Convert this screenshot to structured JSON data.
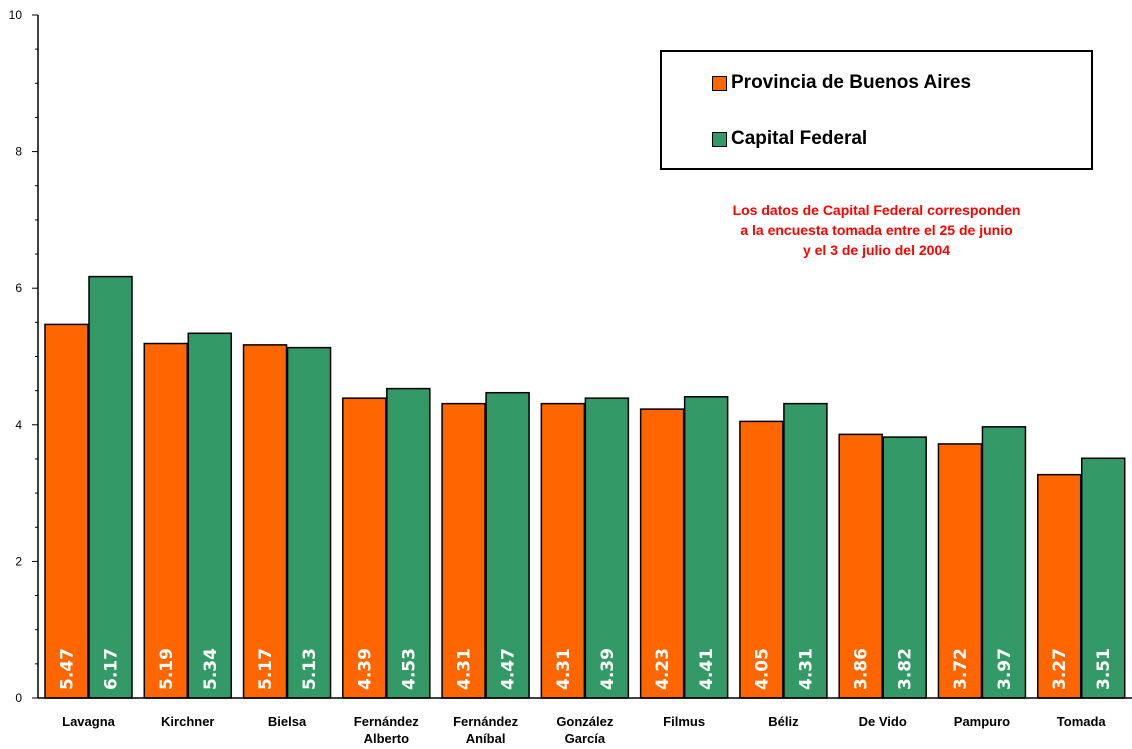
{
  "chart_data": {
    "type": "bar",
    "categories": [
      "Lavagna",
      "Kirchner",
      "Bielsa",
      "Fernández Alberto",
      "Fernández Aníbal",
      "González García",
      "Filmus",
      "Béliz",
      "De Vido",
      "Pampuro",
      "Tomada"
    ],
    "category_lines": [
      [
        "Lavagna"
      ],
      [
        "Kirchner"
      ],
      [
        "Bielsa"
      ],
      [
        "Fernández",
        "Alberto"
      ],
      [
        "Fernández",
        "Aníbal"
      ],
      [
        "González",
        "García"
      ],
      [
        "Filmus"
      ],
      [
        "Béliz"
      ],
      [
        "De Vido"
      ],
      [
        "Pampuro"
      ],
      [
        "Tomada"
      ]
    ],
    "series": [
      {
        "name": "Provincia de Buenos Aires",
        "color": "#ff6600",
        "values": [
          5.47,
          5.19,
          5.17,
          4.39,
          4.31,
          4.31,
          4.23,
          4.05,
          3.86,
          3.72,
          3.27
        ],
        "labels": [
          "5.47",
          "5.19",
          "5.17",
          "4.39",
          "4.31",
          "4.31",
          "4.23",
          "4.05",
          "3.86",
          "3.72",
          "3.27"
        ]
      },
      {
        "name": "Capital Federal",
        "color": "#339966",
        "values": [
          6.17,
          5.34,
          5.13,
          4.53,
          4.47,
          4.39,
          4.41,
          4.31,
          3.82,
          3.97,
          3.51
        ],
        "labels": [
          "6.17",
          "5.34",
          "5.13",
          "4.53",
          "4.47",
          "4.39",
          "4.41",
          "4.31",
          "3.82",
          "3.97",
          "3.51"
        ]
      }
    ],
    "yticks": [
      "0",
      "2",
      "4",
      "6",
      "8",
      "10"
    ],
    "ylim": [
      0,
      10
    ],
    "title": "",
    "xlabel": "",
    "ylabel": "",
    "grid": false,
    "legend_position": "top-right"
  },
  "legend": {
    "items": [
      "Provincia de Buenos Aires",
      "Capital Federal"
    ]
  },
  "note": {
    "lines": [
      "Los datos de Capital Federal corresponden",
      "a la encuesta tomada entre el 25 de junio",
      "y el 3 de julio del 2004"
    ]
  }
}
